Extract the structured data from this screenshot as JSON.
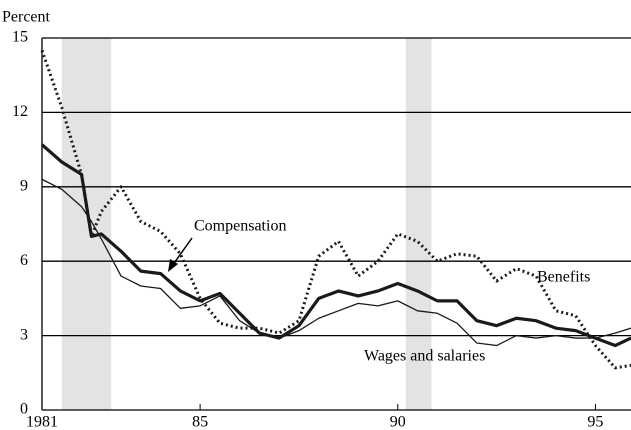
{
  "chart_data": {
    "type": "line",
    "y_label": "Percent",
    "x": [
      1981,
      1981.5,
      1982,
      1982.25,
      1982.5,
      1983,
      1983.5,
      1984,
      1984.5,
      1985,
      1985.5,
      1986,
      1986.5,
      1987,
      1987.5,
      1988,
      1988.5,
      1989,
      1989.5,
      1990,
      1990.5,
      1991,
      1991.5,
      1992,
      1992.5,
      1993,
      1993.5,
      1994,
      1994.5,
      1995,
      1995.5,
      1995.9
    ],
    "series": [
      {
        "name": "Compensation",
        "color": "#1a1a1a",
        "style": "thick",
        "values": [
          10.7,
          10.0,
          9.5,
          7.0,
          7.1,
          6.4,
          5.6,
          5.5,
          4.8,
          4.4,
          4.7,
          3.9,
          3.1,
          2.9,
          3.4,
          4.5,
          4.8,
          4.6,
          4.8,
          5.1,
          4.8,
          4.4,
          4.4,
          3.6,
          3.4,
          3.7,
          3.6,
          3.3,
          3.2,
          2.9,
          2.6,
          2.9
        ]
      },
      {
        "name": "Wages and salaries",
        "color": "#1a1a1a",
        "style": "thin",
        "values": [
          9.3,
          8.9,
          8.2,
          7.6,
          6.9,
          5.4,
          5.0,
          4.9,
          4.1,
          4.2,
          4.6,
          3.6,
          3.1,
          2.9,
          3.2,
          3.7,
          4.0,
          4.3,
          4.2,
          4.4,
          4.0,
          3.9,
          3.5,
          2.7,
          2.6,
          3.0,
          2.9,
          3.0,
          2.9,
          2.9,
          3.1,
          3.3
        ]
      },
      {
        "name": "Benefits",
        "color": "#1a1a1a",
        "style": "dotted",
        "values": [
          14.5,
          12.2,
          9.5,
          7.0,
          8.0,
          9.0,
          7.6,
          7.2,
          6.3,
          4.5,
          3.5,
          3.3,
          3.3,
          3.1,
          3.6,
          6.2,
          6.8,
          5.4,
          6.0,
          7.1,
          6.8,
          6.0,
          6.3,
          6.2,
          5.2,
          5.7,
          5.4,
          4.0,
          3.8,
          2.6,
          1.7,
          1.8
        ]
      }
    ],
    "shading": [
      [
        1981.5,
        1982.75
      ],
      [
        1990.2,
        1990.85
      ]
    ],
    "xlim": [
      1981,
      1995.9
    ],
    "xticks": [
      {
        "value": 1981,
        "label": "1981"
      },
      {
        "value": 1985,
        "label": "85"
      },
      {
        "value": 1990,
        "label": "90"
      },
      {
        "value": 1995,
        "label": "95"
      }
    ],
    "ylim": [
      0,
      15
    ],
    "yticks": [
      0,
      3,
      6,
      9,
      12,
      15
    ],
    "grid": true
  }
}
